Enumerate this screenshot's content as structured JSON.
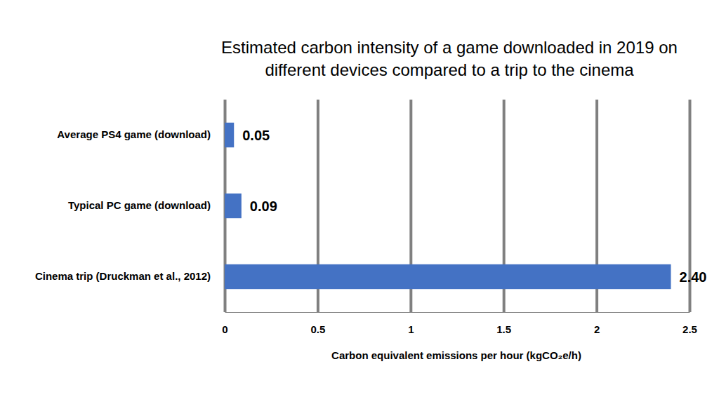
{
  "chart_data": {
    "type": "bar",
    "orientation": "horizontal",
    "title": "Estimated carbon intensity of a game downloaded in 2019 on\ndifferent devices compared to a trip to the cinema",
    "categories": [
      "Average PS4 game (download)",
      "Typical PC game (download)",
      "Cinema trip (Druckman et al., 2012)"
    ],
    "values": [
      0.05,
      0.09,
      2.4
    ],
    "value_labels": [
      "0.05",
      "0.09",
      "2.40"
    ],
    "data_labels": true,
    "color": "#4472c4",
    "xlim": [
      0,
      2.5
    ],
    "xticks": [
      0,
      0.5,
      1,
      1.5,
      2,
      2.5
    ],
    "x_label": "Carbon equivalent emissions per hour (kgCO₂e/h)",
    "grid": true
  }
}
